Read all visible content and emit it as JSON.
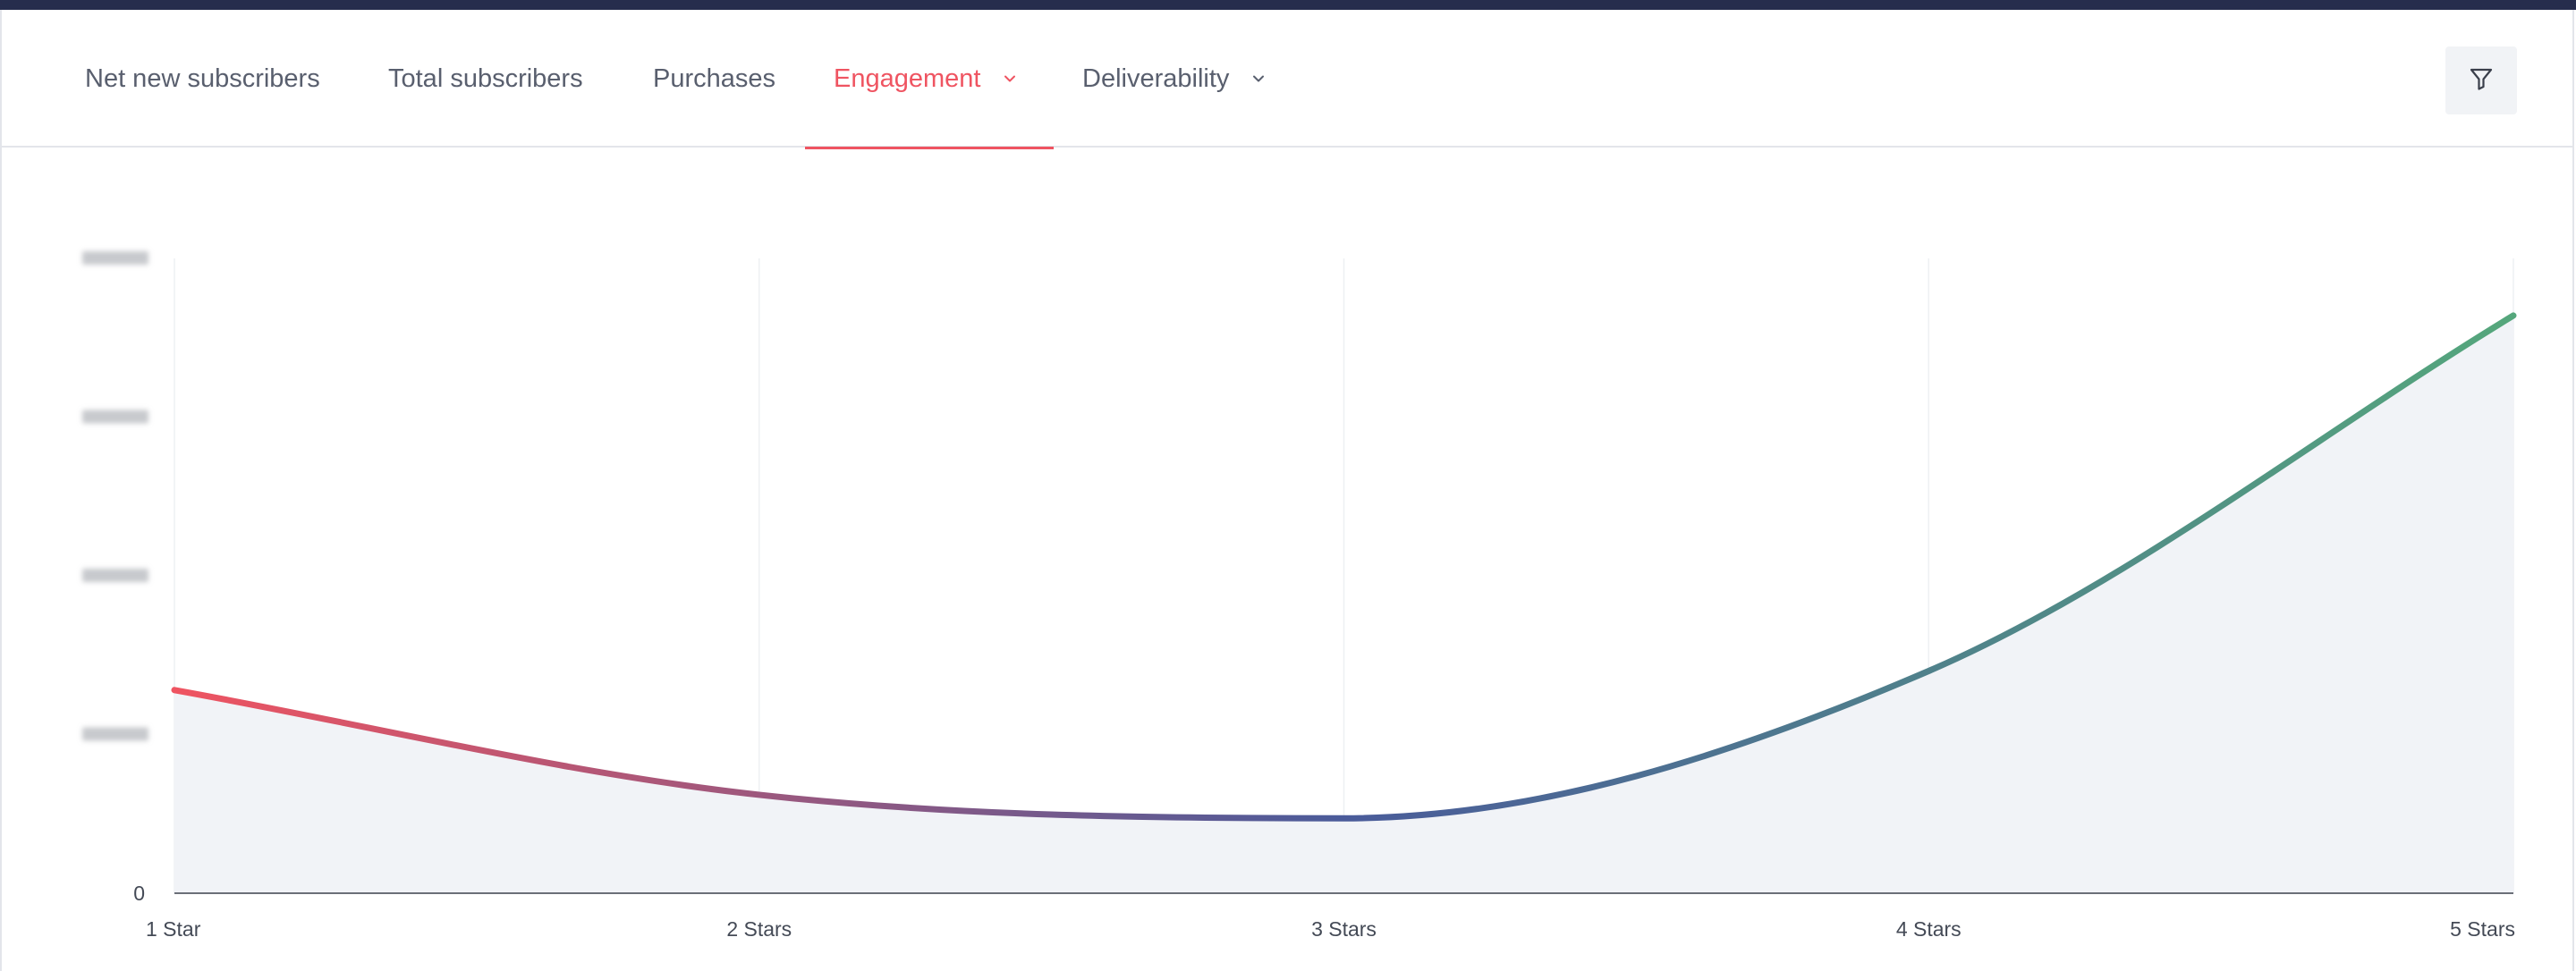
{
  "tabs": [
    {
      "label": "Net new subscribers",
      "active": false,
      "has_dropdown": false
    },
    {
      "label": "Total subscribers",
      "active": false,
      "has_dropdown": false
    },
    {
      "label": "Purchases",
      "active": false,
      "has_dropdown": false
    },
    {
      "label": "Engagement",
      "active": true,
      "has_dropdown": true
    },
    {
      "label": "Deliverability",
      "active": false,
      "has_dropdown": true
    }
  ],
  "filter_button": {
    "icon": "filter-icon"
  },
  "colors": {
    "accent": "#ef5461",
    "topbar": "#262d4d",
    "line_start": "#ef5461",
    "line_mid": "#4a5b9a",
    "line_end": "#55a77c",
    "area_fill": "#f1f3f7"
  },
  "chart_data": {
    "type": "area",
    "categories": [
      "1 Star",
      "2 Stars",
      "3 Stars",
      "4 Stars",
      "5 Stars"
    ],
    "values": [
      32,
      15.5,
      11.8,
      35,
      91
    ],
    "ylim": [
      0,
      100
    ],
    "y_ticks": [
      {
        "label": "0",
        "value": 0
      },
      {
        "label": "",
        "value": 25,
        "blurred": true
      },
      {
        "label": "",
        "value": 50,
        "blurred": true
      },
      {
        "label": "",
        "value": 75,
        "blurred": true
      },
      {
        "label": "",
        "value": 100,
        "blurred": true
      }
    ],
    "grid": "vertical"
  }
}
